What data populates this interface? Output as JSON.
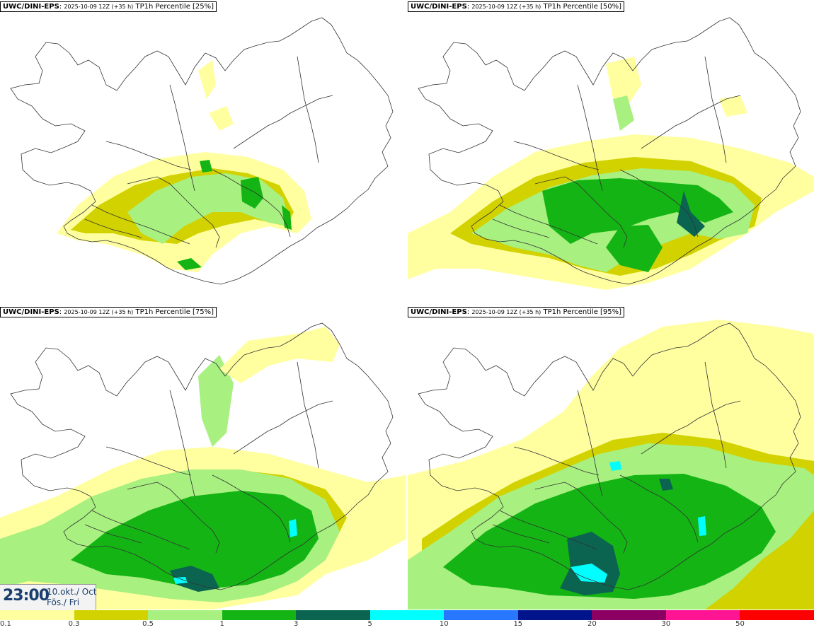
{
  "panels": [
    {
      "model": "UWC/DINI-EPS",
      "run": "2025-10-09 12Z (+35 h)",
      "field": "TP1h Percentile [25%]",
      "level": 0
    },
    {
      "model": "UWC/DINI-EPS",
      "run": "2025-10-09 12Z (+35 h)",
      "field": "TP1h Percentile [50%]",
      "level": 1
    },
    {
      "model": "UWC/DINI-EPS",
      "run": "2025-10-09 12Z (+35 h)",
      "field": "TP1h Percentile [75%]",
      "level": 2
    },
    {
      "model": "UWC/DINI-EPS",
      "run": "2025-10-09 12Z (+35 h)",
      "field": "TP1h Percentile [95%]",
      "level": 3
    }
  ],
  "time": {
    "clock": "23:00",
    "date": "10.okt./ Oct",
    "day": "Fös./ Fri"
  },
  "legend": {
    "colors": [
      "#ffffa0",
      "#d2d200",
      "#a8f080",
      "#14b414",
      "#0a6450",
      "#00ffff",
      "#2878ff",
      "#00148c",
      "#8c0064",
      "#ff1493",
      "#ff0000"
    ],
    "labels": [
      "0.1",
      "0.3",
      "0.5",
      "1",
      "3",
      "5",
      "10",
      "15",
      "20",
      "30",
      "50"
    ]
  }
}
